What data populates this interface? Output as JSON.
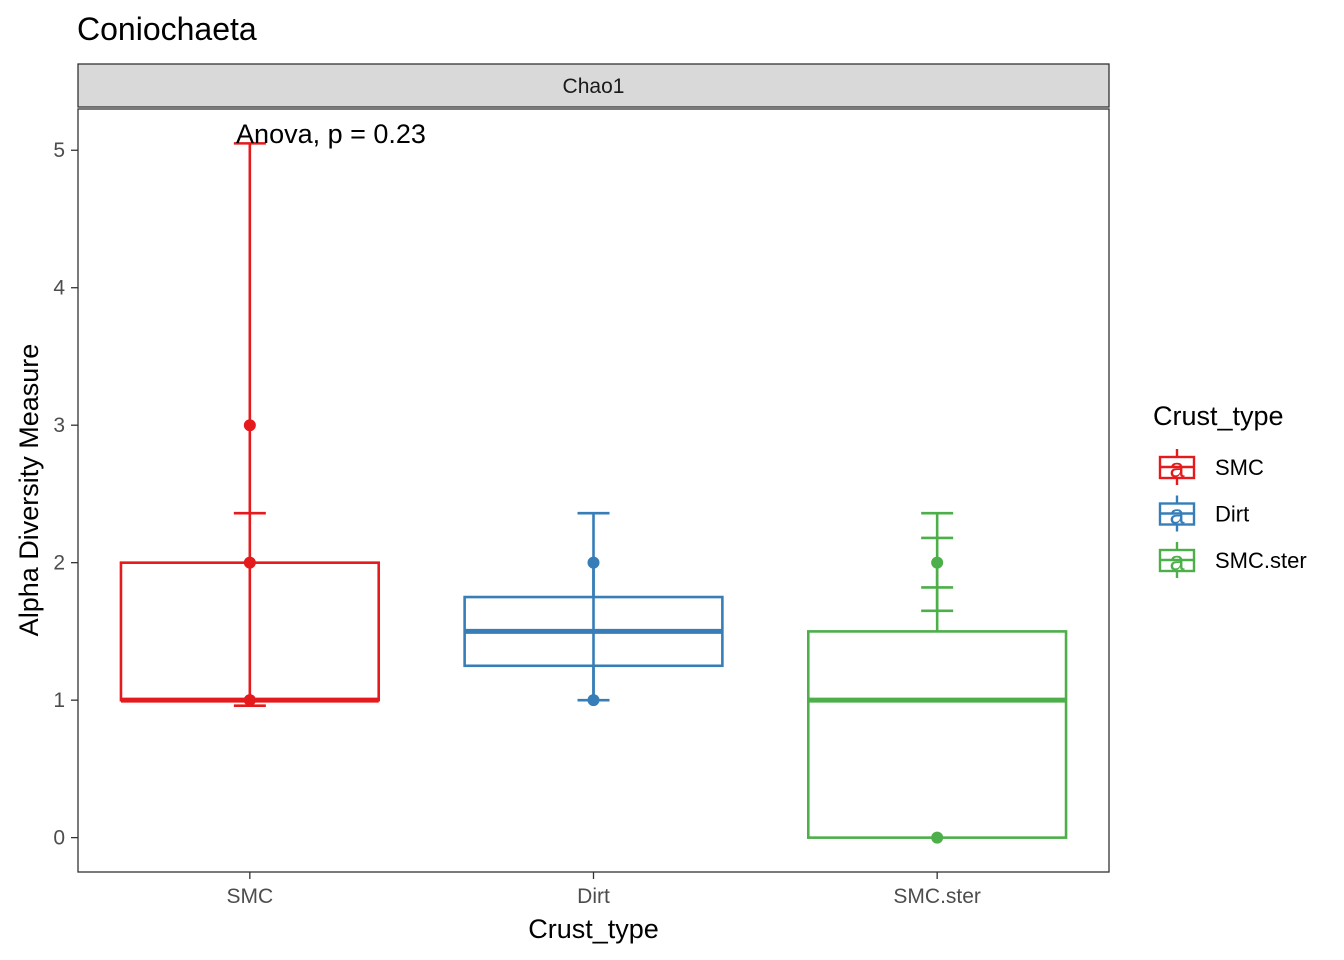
{
  "chart_data": {
    "type": "box",
    "title": "Coniochaeta",
    "facet_label": "Chao1",
    "annotation": "Anova, p = 0.23",
    "xlabel": "Crust_type",
    "ylabel": "Alpha Diversity Measure",
    "categories": [
      "SMC",
      "Dirt",
      "SMC.ster"
    ],
    "ylim": [
      -0.25,
      5.3
    ],
    "yticks": [
      0,
      1,
      2,
      3,
      4,
      5
    ],
    "ytick_labels": [
      "0",
      "1",
      "2",
      "3",
      "4",
      "5"
    ],
    "grid": false,
    "legend": {
      "title": "Crust_type",
      "position": "right",
      "glyph": "a",
      "entries": [
        "SMC",
        "Dirt",
        "SMC.ster"
      ]
    },
    "series": [
      {
        "name": "SMC",
        "color": "#E41A1C",
        "box": {
          "lower_whisker": 1,
          "q1": 1,
          "median": 1,
          "q3": 2,
          "upper_whisker": 2
        },
        "points": [
          1,
          2,
          3
        ],
        "error_caps": [
          0.96,
          2.36,
          5.05
        ]
      },
      {
        "name": "Dirt",
        "color": "#377EB8",
        "box": {
          "lower_whisker": 1,
          "q1": 1.25,
          "median": 1.5,
          "q3": 1.75,
          "upper_whisker": 2
        },
        "points": [
          1,
          2
        ],
        "error_caps": [
          1.0,
          2.36
        ]
      },
      {
        "name": "SMC.ster",
        "color": "#4DAF4A",
        "box": {
          "lower_whisker": 0,
          "q1": 0,
          "median": 1,
          "q3": 1.5,
          "upper_whisker": 2
        },
        "points": [
          0,
          2
        ],
        "error_caps": [
          1.65,
          1.82,
          2.18,
          2.36
        ]
      }
    ]
  }
}
